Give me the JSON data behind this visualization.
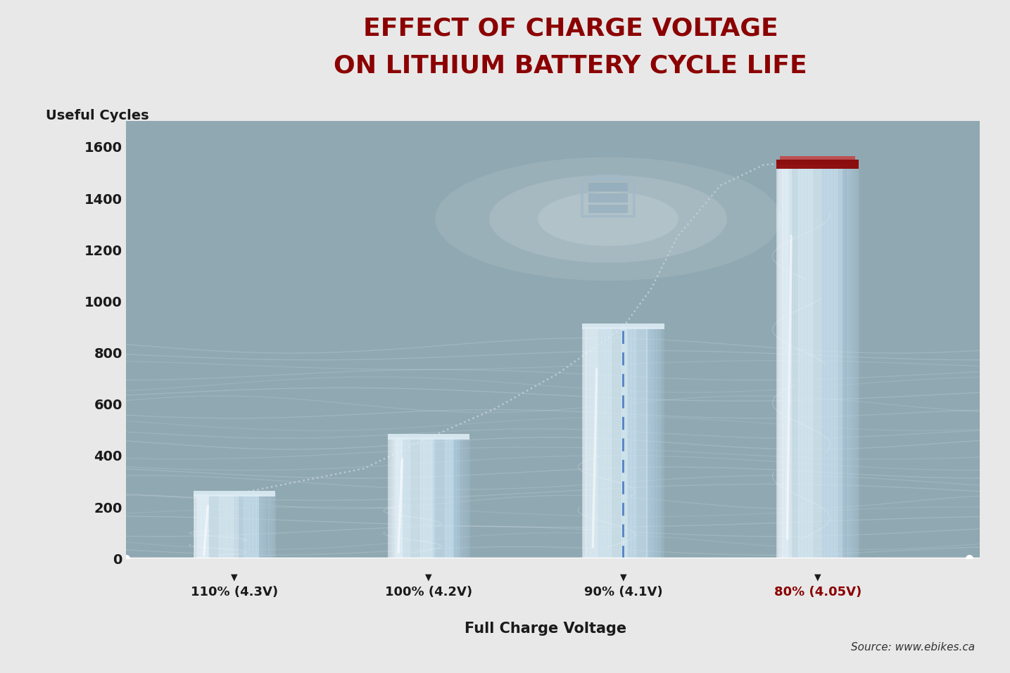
{
  "title_line1": "EFFECT OF CHARGE VOLTAGE",
  "title_line2": "ON LITHIUM BATTERY CYCLE LIFE",
  "title_color": "#8B0000",
  "ylabel": "Useful Cycles",
  "xlabel": "Full Charge Voltage",
  "source": "Source: www.ebikes.ca",
  "categories": [
    "110% (4.3V)",
    "100% (4.2V)",
    "90% (4.1V)",
    "80% (4.05V)"
  ],
  "values": [
    250,
    470,
    900,
    1530
  ],
  "bar_highlight_index": 3,
  "bar_highlight_color": "#8B0000",
  "tick_label_color_default": "#1a1a1a",
  "tick_label_color_highlight": "#8B0000",
  "ylim": [
    0,
    1700
  ],
  "yticks": [
    0,
    200,
    400,
    600,
    800,
    1000,
    1200,
    1400,
    1600
  ],
  "background_color": "#8fa8b2",
  "fig_background": "#e8e8e8",
  "bar_color_center": "#ddeef8",
  "dashed_line_color": "#4a7abf",
  "title_fontsize": 26,
  "label_fontsize": 13,
  "tick_fontsize": 14,
  "source_fontsize": 11
}
